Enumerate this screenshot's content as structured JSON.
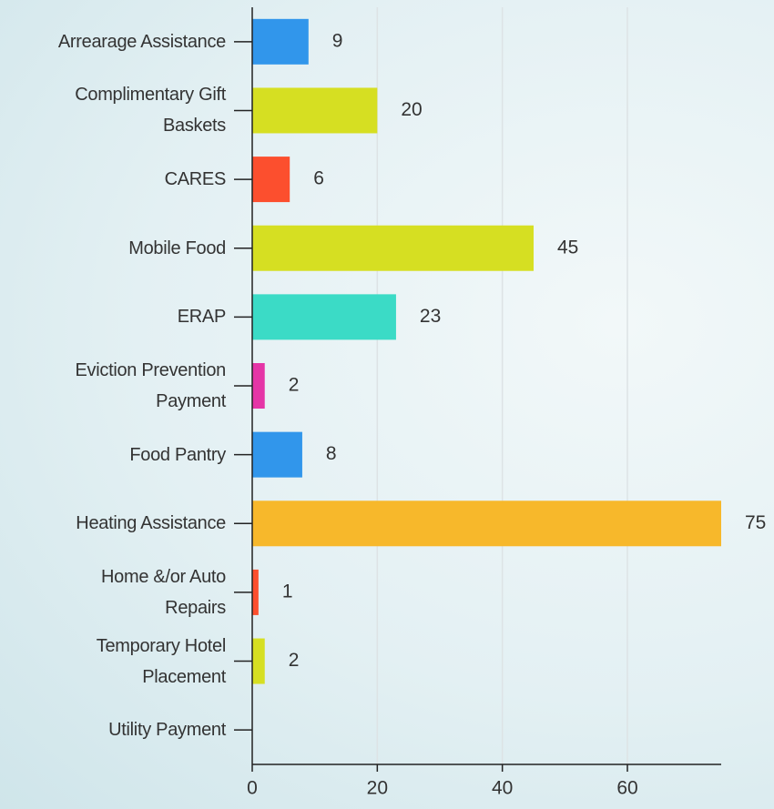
{
  "chart_data": {
    "type": "bar",
    "orientation": "horizontal",
    "categories": [
      "Arrearage Assistance",
      "Complimentary Gift Baskets",
      "CARES",
      "Mobile Food",
      "ERAP",
      "Eviction Prevention Payment",
      "Food Pantry",
      "Heating Assistance",
      "Home &/or Auto Repairs",
      "Temporary Hotel Placement",
      "Utility Payment"
    ],
    "values": [
      9,
      20,
      6,
      45,
      23,
      2,
      8,
      75,
      1,
      2,
      null
    ],
    "colors": [
      "#3196eb",
      "#d6df22",
      "#fc4f2e",
      "#d6df22",
      "#3bdbc6",
      "#e535a6",
      "#3196eb",
      "#f7b82b",
      "#fc4f2e",
      "#d6df22",
      "#d6df22"
    ],
    "xlim": [
      0,
      75
    ],
    "xticks": [
      0,
      20,
      40,
      60
    ],
    "grid": true
  }
}
